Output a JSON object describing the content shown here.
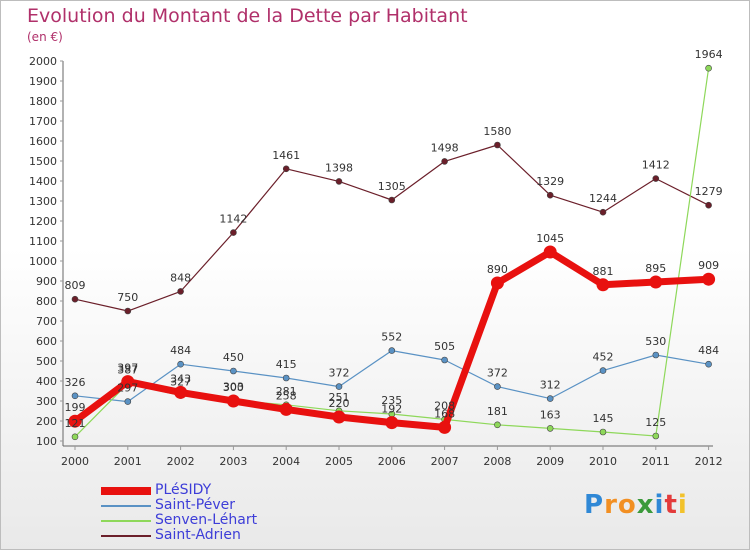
{
  "title": "Evolution du Montant de la Dette par Habitant",
  "subtitle": "(en €)",
  "logo": {
    "text": "Proxiti",
    "letter_colors": [
      "#2f88d6",
      "#f28f22",
      "#f28f22",
      "#3b9a3b",
      "#2f88d6",
      "#e33b3b",
      "#f2c22b"
    ]
  },
  "colors": {
    "title": "#b0306a",
    "axis": "#555555"
  },
  "chart_data": {
    "type": "line",
    "title": "Evolution du Montant de la Dette par Habitant",
    "subtitle": "(en €)",
    "x": [
      "2000",
      "2001",
      "2002",
      "2003",
      "2004",
      "2005",
      "2006",
      "2007",
      "2008",
      "2009",
      "2010",
      "2011",
      "2012"
    ],
    "ylim": [
      100,
      2000
    ],
    "yticks": [
      100,
      200,
      300,
      400,
      500,
      600,
      700,
      800,
      900,
      1000,
      1100,
      1200,
      1300,
      1400,
      1500,
      1600,
      1700,
      1800,
      1900,
      2000
    ],
    "legend_position": "bottom-left",
    "grid": false,
    "series": [
      {
        "name": "Saint-Adrien",
        "color": "#6b1f2a",
        "width": 1.2,
        "values": [
          809,
          750,
          848,
          1142,
          1461,
          1398,
          1305,
          1498,
          1580,
          1329,
          1244,
          1412,
          1279
        ]
      },
      {
        "name": "Saint-Péver",
        "color": "#5a92c4",
        "width": 1.2,
        "values": [
          326,
          297,
          484,
          450,
          415,
          372,
          552,
          505,
          372,
          312,
          452,
          530,
          484
        ]
      },
      {
        "name": "Senven-Léhart",
        "color": "#8ed85a",
        "width": 1.2,
        "values": [
          121,
          387,
          327,
          303,
          281,
          251,
          235,
          208,
          181,
          163,
          145,
          125,
          1964
        ]
      },
      {
        "name": "PLéSIDY",
        "color": "#e8110f",
        "width": 7,
        "values": [
          199,
          397,
          343,
          300,
          258,
          220,
          192,
          168,
          890,
          1045,
          881,
          895,
          909
        ]
      }
    ],
    "labels": [
      {
        "series": "Saint-Adrien",
        "labels": [
          "809",
          "750",
          "848",
          "1142",
          "1461",
          "1398",
          "1305",
          "1498",
          "1580",
          "1329",
          "1244",
          "1412",
          "1279"
        ]
      },
      {
        "series": "Saint-Péver",
        "labels": [
          "326",
          "297",
          "484",
          "450",
          "415",
          "372",
          "552",
          "505",
          "372",
          "312",
          "452",
          "530",
          "484"
        ]
      },
      {
        "series": "Senven-Léhart",
        "labels": [
          "121",
          "387",
          "327",
          "303",
          "281",
          "251",
          "235",
          "208",
          "181",
          "163",
          "145",
          "125",
          "1964"
        ]
      },
      {
        "series": "PLéSIDY",
        "labels": [
          "199",
          "397",
          "343",
          "300",
          "258",
          "220",
          "192",
          "168",
          "890",
          "1045",
          "881",
          "895",
          "909"
        ]
      }
    ]
  },
  "legend": [
    {
      "name": "PLéSIDY",
      "color": "#e8110f",
      "thickness": 8
    },
    {
      "name": "Saint-Péver",
      "color": "#5a92c4",
      "thickness": 2
    },
    {
      "name": "Senven-Léhart",
      "color": "#8ed85a",
      "thickness": 2
    },
    {
      "name": "Saint-Adrien",
      "color": "#6b1f2a",
      "thickness": 2
    }
  ]
}
